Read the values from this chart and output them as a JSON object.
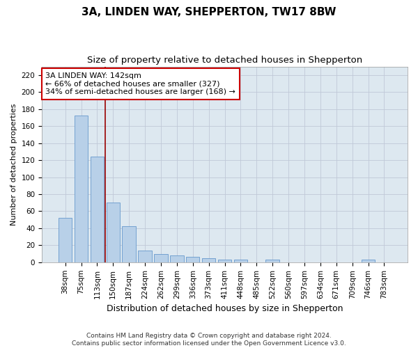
{
  "title": "3A, LINDEN WAY, SHEPPERTON, TW17 8BW",
  "subtitle": "Size of property relative to detached houses in Shepperton",
  "xlabel": "Distribution of detached houses by size in Shepperton",
  "ylabel": "Number of detached properties",
  "categories": [
    "38sqm",
    "75sqm",
    "113sqm",
    "150sqm",
    "187sqm",
    "224sqm",
    "262sqm",
    "299sqm",
    "336sqm",
    "373sqm",
    "411sqm",
    "448sqm",
    "485sqm",
    "522sqm",
    "560sqm",
    "597sqm",
    "634sqm",
    "671sqm",
    "709sqm",
    "746sqm",
    "783sqm"
  ],
  "values": [
    52,
    172,
    124,
    70,
    42,
    14,
    10,
    8,
    6,
    5,
    3,
    3,
    0,
    3,
    0,
    0,
    0,
    0,
    0,
    3,
    0
  ],
  "bar_color": "#b8d0e8",
  "bar_edge_color": "#6699cc",
  "vline_color": "#990000",
  "annotation_text": "3A LINDEN WAY: 142sqm\n← 66% of detached houses are smaller (327)\n34% of semi-detached houses are larger (168) →",
  "annotation_box_color": "#ffffff",
  "annotation_box_edge": "#cc0000",
  "ylim": [
    0,
    230
  ],
  "yticks": [
    0,
    20,
    40,
    60,
    80,
    100,
    120,
    140,
    160,
    180,
    200,
    220
  ],
  "bg_color": "#dde8f0",
  "footer": "Contains HM Land Registry data © Crown copyright and database right 2024.\nContains public sector information licensed under the Open Government Licence v3.0.",
  "title_fontsize": 11,
  "subtitle_fontsize": 9.5,
  "xlabel_fontsize": 9,
  "ylabel_fontsize": 8,
  "tick_fontsize": 7.5,
  "annotation_fontsize": 8,
  "footer_fontsize": 6.5
}
